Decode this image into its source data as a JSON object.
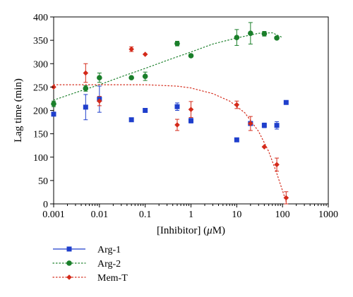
{
  "chart_data": {
    "type": "scatter",
    "xlabel": "[Inhibitor] (μM)",
    "xlabel_prefix": "[Inhibitor] (",
    "xlabel_unit_prefix": "μ",
    "xlabel_unit": "M)",
    "ylabel": "Lag time (min)",
    "xscale": "log",
    "xlim": [
      0.001,
      1000
    ],
    "ylim": [
      0,
      400
    ],
    "xticks": [
      0.001,
      0.01,
      0.1,
      1,
      10,
      100,
      1000
    ],
    "xtick_labels": [
      "0.001",
      "0.01",
      "0.1",
      "1",
      "10",
      "100",
      "1000"
    ],
    "yticks": [
      0,
      50,
      100,
      150,
      200,
      250,
      300,
      350,
      400
    ],
    "ytick_labels": [
      "0",
      "50",
      "100",
      "150",
      "200",
      "250",
      "300",
      "350",
      "400"
    ],
    "grid": false,
    "legend_position": "bottom-left, outside plot",
    "series": [
      {
        "name": "Arg-1",
        "color": "#1f3fcc",
        "marker": "square",
        "line_style": "solid",
        "points": [
          {
            "x": 0.001,
            "y": 192,
            "err": 0
          },
          {
            "x": 0.005,
            "y": 207,
            "err": 27
          },
          {
            "x": 0.01,
            "y": 224,
            "err": 28
          },
          {
            "x": 0.05,
            "y": 180,
            "err": 0
          },
          {
            "x": 0.1,
            "y": 200,
            "err": 0
          },
          {
            "x": 0.5,
            "y": 208,
            "err": 8
          },
          {
            "x": 1,
            "y": 178,
            "err": 5
          },
          {
            "x": 10,
            "y": 137,
            "err": 0
          },
          {
            "x": 20,
            "y": 172,
            "err": 0
          },
          {
            "x": 40,
            "y": 168,
            "err": 5
          },
          {
            "x": 75,
            "y": 168,
            "err": 8
          },
          {
            "x": 120,
            "y": 217,
            "err": 0
          }
        ]
      },
      {
        "name": "Arg-2",
        "color": "#1a7f2a",
        "marker": "circle",
        "line_style": "dotted",
        "points": [
          {
            "x": 0.001,
            "y": 214,
            "err": 6
          },
          {
            "x": 0.005,
            "y": 247,
            "err": 6
          },
          {
            "x": 0.01,
            "y": 270,
            "err": 10
          },
          {
            "x": 0.05,
            "y": 270,
            "err": 0
          },
          {
            "x": 0.1,
            "y": 273,
            "err": 9
          },
          {
            "x": 0.5,
            "y": 343,
            "err": 5
          },
          {
            "x": 1,
            "y": 317,
            "err": 0
          },
          {
            "x": 10,
            "y": 356,
            "err": 17
          },
          {
            "x": 20,
            "y": 365,
            "err": 23
          },
          {
            "x": 40,
            "y": 364,
            "err": 5
          },
          {
            "x": 75,
            "y": 355,
            "err": 0
          }
        ],
        "fit": [
          {
            "x": 0.001,
            "y": 222
          },
          {
            "x": 0.003,
            "y": 238
          },
          {
            "x": 0.01,
            "y": 255
          },
          {
            "x": 0.03,
            "y": 272
          },
          {
            "x": 0.1,
            "y": 290
          },
          {
            "x": 0.3,
            "y": 307
          },
          {
            "x": 1,
            "y": 325
          },
          {
            "x": 3,
            "y": 342
          },
          {
            "x": 10,
            "y": 355
          },
          {
            "x": 30,
            "y": 365
          },
          {
            "x": 60,
            "y": 366
          },
          {
            "x": 100,
            "y": 356
          }
        ]
      },
      {
        "name": "Mem-T",
        "color": "#d42a1a",
        "marker": "diamond",
        "line_style": "dotted",
        "points": [
          {
            "x": 0.001,
            "y": 250,
            "err": 0
          },
          {
            "x": 0.005,
            "y": 280,
            "err": 20
          },
          {
            "x": 0.01,
            "y": 220,
            "err": 10
          },
          {
            "x": 0.05,
            "y": 331,
            "err": 5
          },
          {
            "x": 0.1,
            "y": 320,
            "err": 0
          },
          {
            "x": 0.5,
            "y": 169,
            "err": 12
          },
          {
            "x": 1,
            "y": 202,
            "err": 17
          },
          {
            "x": 10,
            "y": 212,
            "err": 8
          },
          {
            "x": 20,
            "y": 172,
            "err": 15
          },
          {
            "x": 40,
            "y": 122,
            "err": 0
          },
          {
            "x": 75,
            "y": 84,
            "err": 14
          },
          {
            "x": 120,
            "y": 13,
            "err": 13
          }
        ],
        "fit": [
          {
            "x": 0.001,
            "y": 255
          },
          {
            "x": 0.01,
            "y": 255
          },
          {
            "x": 0.1,
            "y": 255
          },
          {
            "x": 0.5,
            "y": 252
          },
          {
            "x": 1,
            "y": 248
          },
          {
            "x": 3,
            "y": 236
          },
          {
            "x": 7,
            "y": 220
          },
          {
            "x": 15,
            "y": 195
          },
          {
            "x": 30,
            "y": 155
          },
          {
            "x": 50,
            "y": 112
          },
          {
            "x": 75,
            "y": 65
          },
          {
            "x": 100,
            "y": 28
          },
          {
            "x": 120,
            "y": 5
          }
        ]
      }
    ]
  }
}
